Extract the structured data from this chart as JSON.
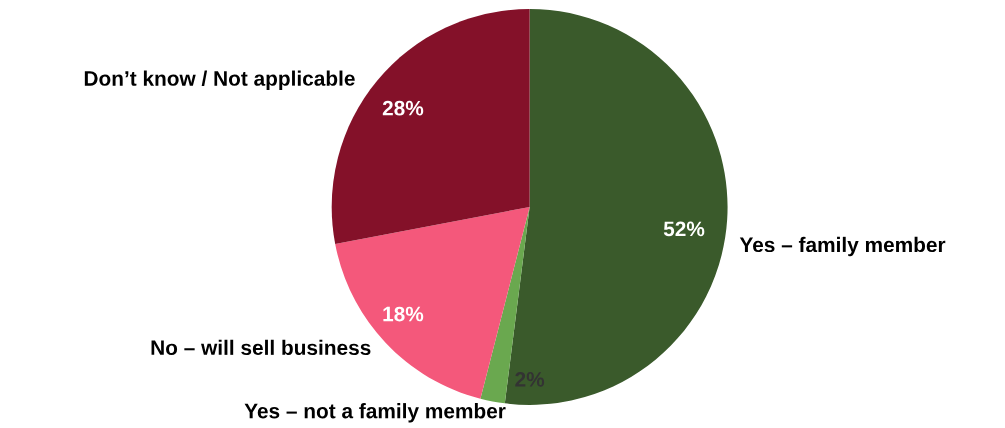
{
  "chart_data": {
    "type": "pie",
    "categories": [
      "Yes – family member",
      "Yes – not a family member",
      "No – will sell business",
      "Don’t know / Not applicable"
    ],
    "values": [
      52,
      2,
      18,
      28
    ],
    "colors": [
      "#3a5a2b",
      "#6aa84f",
      "#f4587b",
      "#841129"
    ],
    "value_labels": [
      "52%",
      "2%",
      "18%",
      "28%"
    ]
  }
}
